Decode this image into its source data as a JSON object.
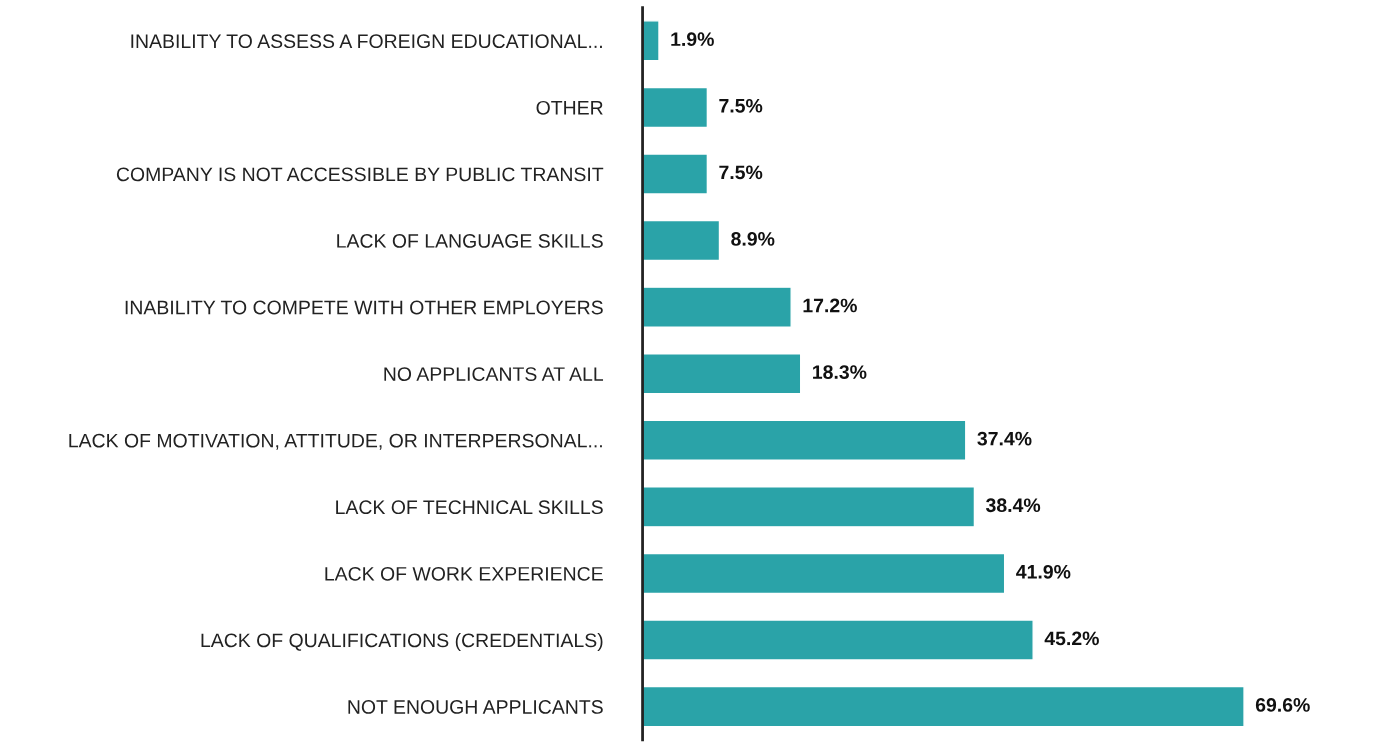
{
  "chart_data": {
    "type": "bar",
    "orientation": "horizontal",
    "categories": [
      "INABILITY TO ASSESS A FOREIGN EDUCATIONAL...",
      "OTHER",
      "COMPANY IS NOT ACCESSIBLE BY PUBLIC TRANSIT",
      "LACK OF LANGUAGE SKILLS",
      "INABILITY TO COMPETE WITH OTHER EMPLOYERS",
      "NO APPLICANTS AT ALL",
      "LACK OF MOTIVATION, ATTITUDE, OR INTERPERSONAL...",
      "LACK OF TECHNICAL SKILLS",
      "LACK OF WORK EXPERIENCE",
      "LACK OF QUALIFICATIONS (CREDENTIALS)",
      "NOT ENOUGH APPLICANTS"
    ],
    "values": [
      1.9,
      7.5,
      7.5,
      8.9,
      17.2,
      18.3,
      37.4,
      38.4,
      41.9,
      45.2,
      69.6
    ],
    "value_labels": [
      "1.9%",
      "7.5%",
      "7.5%",
      "8.9%",
      "17.2%",
      "18.3%",
      "37.4%",
      "38.4%",
      "41.9%",
      "45.2%",
      "69.6%"
    ],
    "color": "#2aa3a8",
    "grid": false,
    "legend": false
  }
}
